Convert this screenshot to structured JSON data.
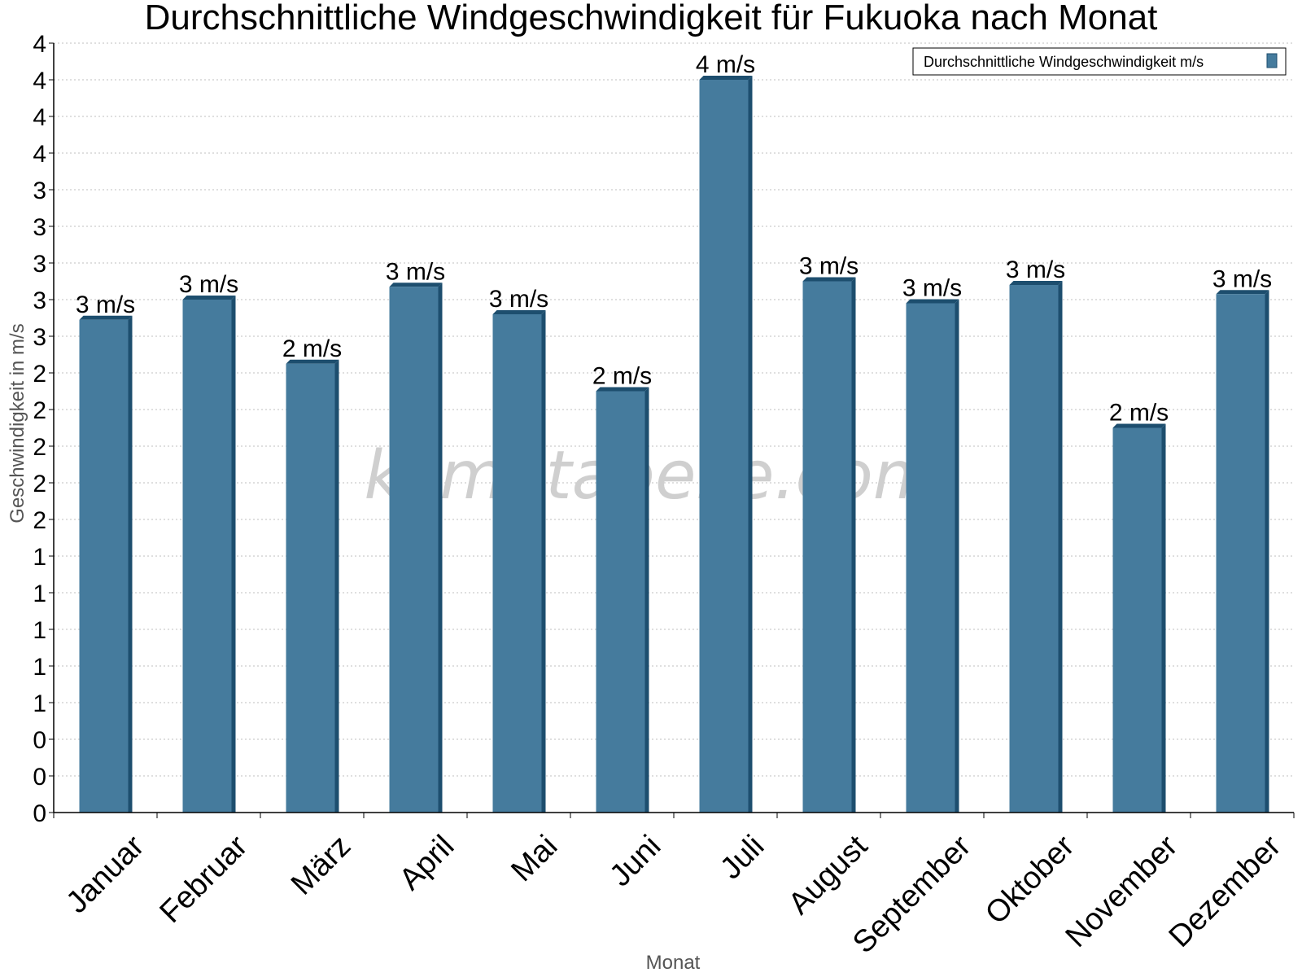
{
  "chart_data": {
    "type": "bar",
    "title": "Durchschnittliche Windgeschwindigkeit für Fukuoka nach Monat",
    "xlabel": "Monat",
    "ylabel": "Geschwindigkeit in m/s",
    "categories": [
      "Januar",
      "Februar",
      "März",
      "April",
      "Mai",
      "Juni",
      "Juli",
      "August",
      "September",
      "Oktober",
      "November",
      "Dezember"
    ],
    "series": [
      {
        "name": "Durchschnittliche Windgeschwindigkeit m/s",
        "values": [
          2.69,
          2.8,
          2.45,
          2.87,
          2.72,
          2.3,
          4.0,
          2.9,
          2.78,
          2.88,
          2.1,
          2.83
        ],
        "labels": [
          "3 m/s",
          "3 m/s",
          "2 m/s",
          "3 m/s",
          "3 m/s",
          "2 m/s",
          "4 m/s",
          "3 m/s",
          "3 m/s",
          "3 m/s",
          "2 m/s",
          "3 m/s"
        ],
        "color": "#457b9d"
      }
    ],
    "ylim": [
      0,
      4.2
    ],
    "yticks": [
      0,
      0.2,
      0.4,
      0.6,
      0.8,
      1.0,
      1.2,
      1.4,
      1.6,
      1.8,
      2.0,
      2.2,
      2.4,
      2.6,
      2.8,
      3.0,
      3.2,
      3.4,
      3.6,
      3.8,
      4.0,
      4.2
    ],
    "ytick_labels": [
      "0",
      "0",
      "0",
      "1",
      "1",
      "1",
      "1",
      "1",
      "2",
      "2",
      "2",
      "2",
      "2",
      "3",
      "3",
      "3",
      "3",
      "3",
      "4",
      "4",
      "4",
      "4"
    ],
    "grid": true,
    "legend_position": "top-right",
    "watermark": "klimatabelle.com",
    "bar_side_color": "#1d4e6e"
  }
}
